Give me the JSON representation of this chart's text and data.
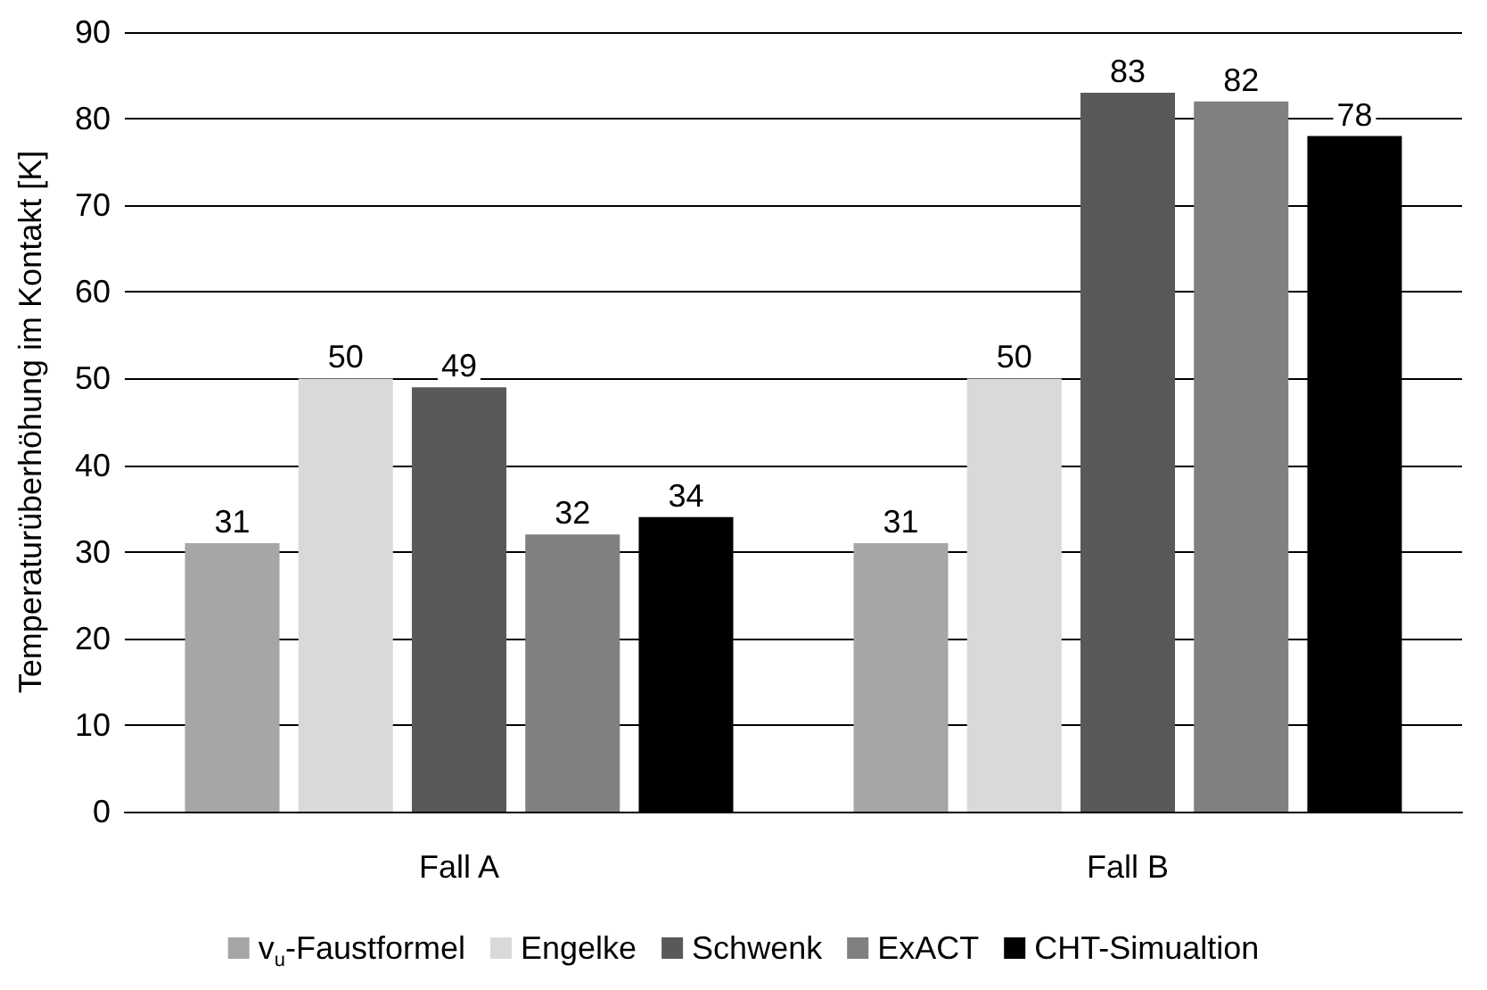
{
  "chart_data": {
    "type": "bar",
    "ylabel": "Temperaturüberhöhung im Kontakt [K]",
    "categories": [
      "Fall A",
      "Fall B"
    ],
    "series": [
      {
        "name": "v$_{u}$-Faustformel",
        "color": "#a6a6a6",
        "values": [
          31,
          31
        ]
      },
      {
        "name": "Engelke",
        "color": "#d9d9d9",
        "values": [
          50,
          50
        ]
      },
      {
        "name": "Schwenk",
        "color": "#595959",
        "values": [
          49,
          83
        ]
      },
      {
        "name": "ExACT",
        "color": "#808080",
        "values": [
          32,
          82
        ]
      },
      {
        "name": "CHT-Simualtion",
        "color": "#000000",
        "values": [
          34,
          78
        ]
      }
    ],
    "ylim": [
      0,
      90
    ],
    "yticks": [
      0,
      10,
      20,
      30,
      40,
      50,
      60,
      70,
      80,
      90
    ],
    "grid": "y",
    "legend": "bottom",
    "data_labels": true
  }
}
